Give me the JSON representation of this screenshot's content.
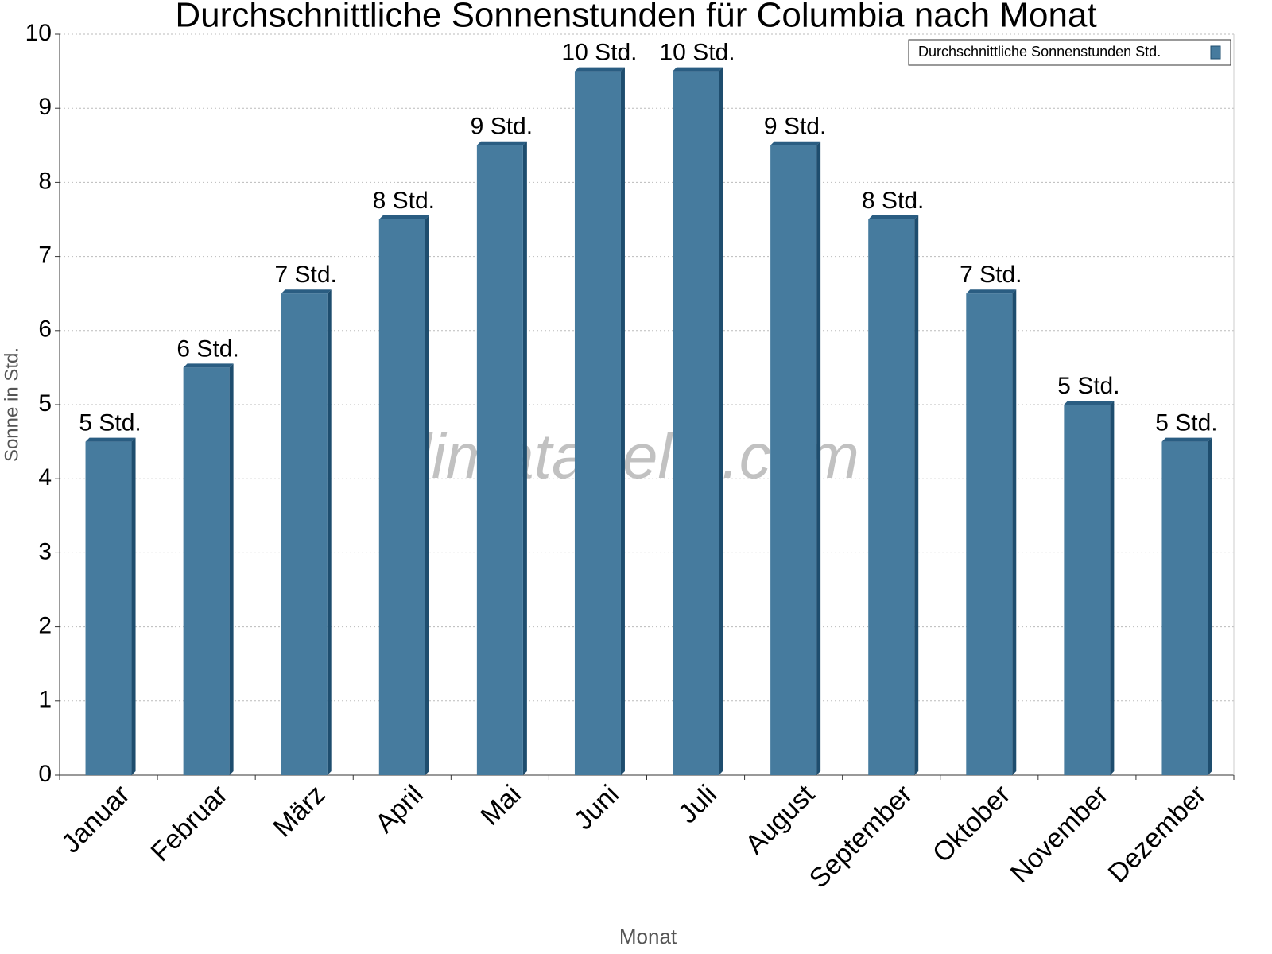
{
  "chart_data": {
    "type": "bar",
    "title": "Durchschnittliche Sonnenstunden für Columbia nach Monat",
    "x_label": "Monat",
    "y_label": "Sonne in Std.",
    "watermark": "klimatabelle.com",
    "categories": [
      "Januar",
      "Februar",
      "März",
      "April",
      "Mai",
      "Juni",
      "Juli",
      "August",
      "September",
      "Oktober",
      "November",
      "Dezember"
    ],
    "series": [
      {
        "name": "Durchschnittliche Sonnenstunden Std.",
        "color": "#467b9e",
        "values": [
          4.5,
          5.5,
          6.5,
          7.5,
          8.5,
          9.5,
          9.5,
          8.5,
          7.5,
          6.5,
          5,
          4.5
        ],
        "value_labels": [
          "5 Std.",
          "6 Std.",
          "7 Std.",
          "8 Std.",
          "9 Std.",
          "10 Std.",
          "10 Std.",
          "9 Std.",
          "8 Std.",
          "7 Std.",
          "5 Std.",
          "5 Std."
        ]
      }
    ],
    "ylim": [
      0,
      10
    ],
    "yticks": [
      0,
      1,
      2,
      3,
      4,
      5,
      6,
      7,
      8,
      9,
      10
    ],
    "grid": true,
    "legend": "upper right"
  }
}
